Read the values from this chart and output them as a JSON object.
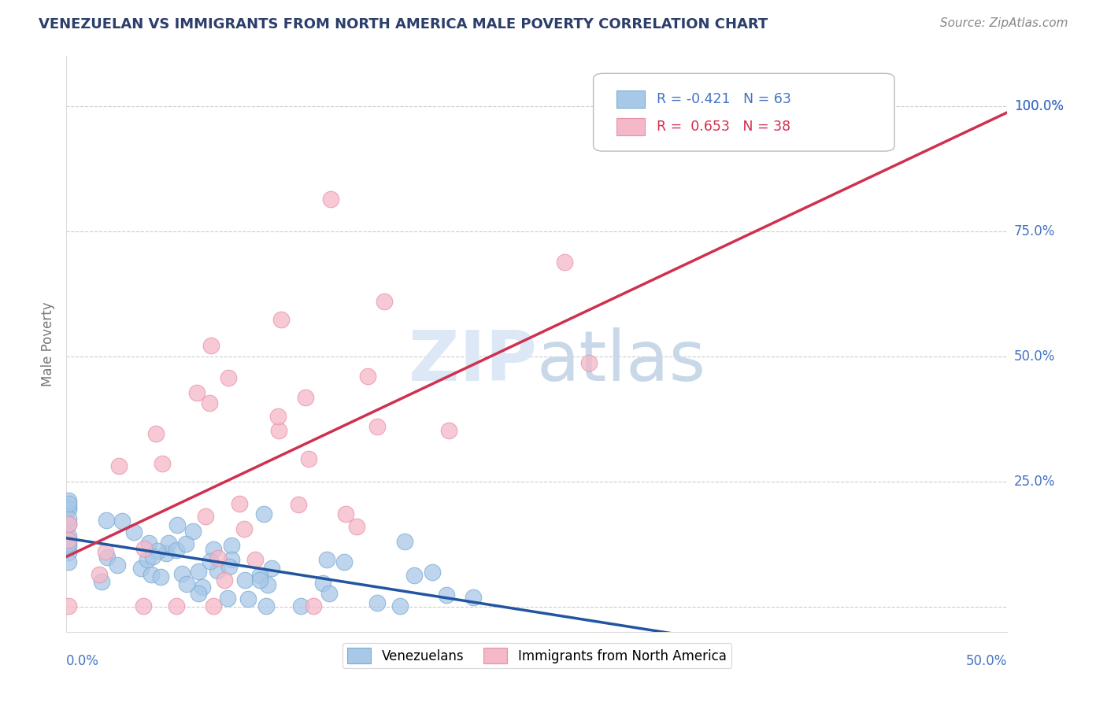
{
  "title": "VENEZUELAN VS IMMIGRANTS FROM NORTH AMERICA MALE POVERTY CORRELATION CHART",
  "source": "Source: ZipAtlas.com",
  "ylabel": "Male Poverty",
  "ytick_values": [
    0,
    0.25,
    0.5,
    0.75,
    1.0
  ],
  "ytick_labels": [
    "",
    "25.0%",
    "50.0%",
    "75.0%",
    "100.0%"
  ],
  "xlim": [
    0.0,
    0.5
  ],
  "ylim": [
    -0.05,
    1.1
  ],
  "blue_R": -0.421,
  "blue_N": 63,
  "pink_R": 0.653,
  "pink_N": 38,
  "blue_color": "#a8c8e8",
  "pink_color": "#f5b8c8",
  "blue_edge_color": "#7aacd4",
  "pink_edge_color": "#e890a8",
  "blue_line_color": "#2255a0",
  "pink_line_color": "#d03050",
  "legend_label_blue": "Venezuelans",
  "legend_label_pink": "Immigrants from North America",
  "watermark_color": "#dce8f5",
  "background_color": "#ffffff",
  "grid_color": "#cccccc",
  "title_color": "#2c3e6b",
  "tick_label_color": "#4472c4",
  "ylabel_color": "#777777",
  "source_color": "#888888"
}
